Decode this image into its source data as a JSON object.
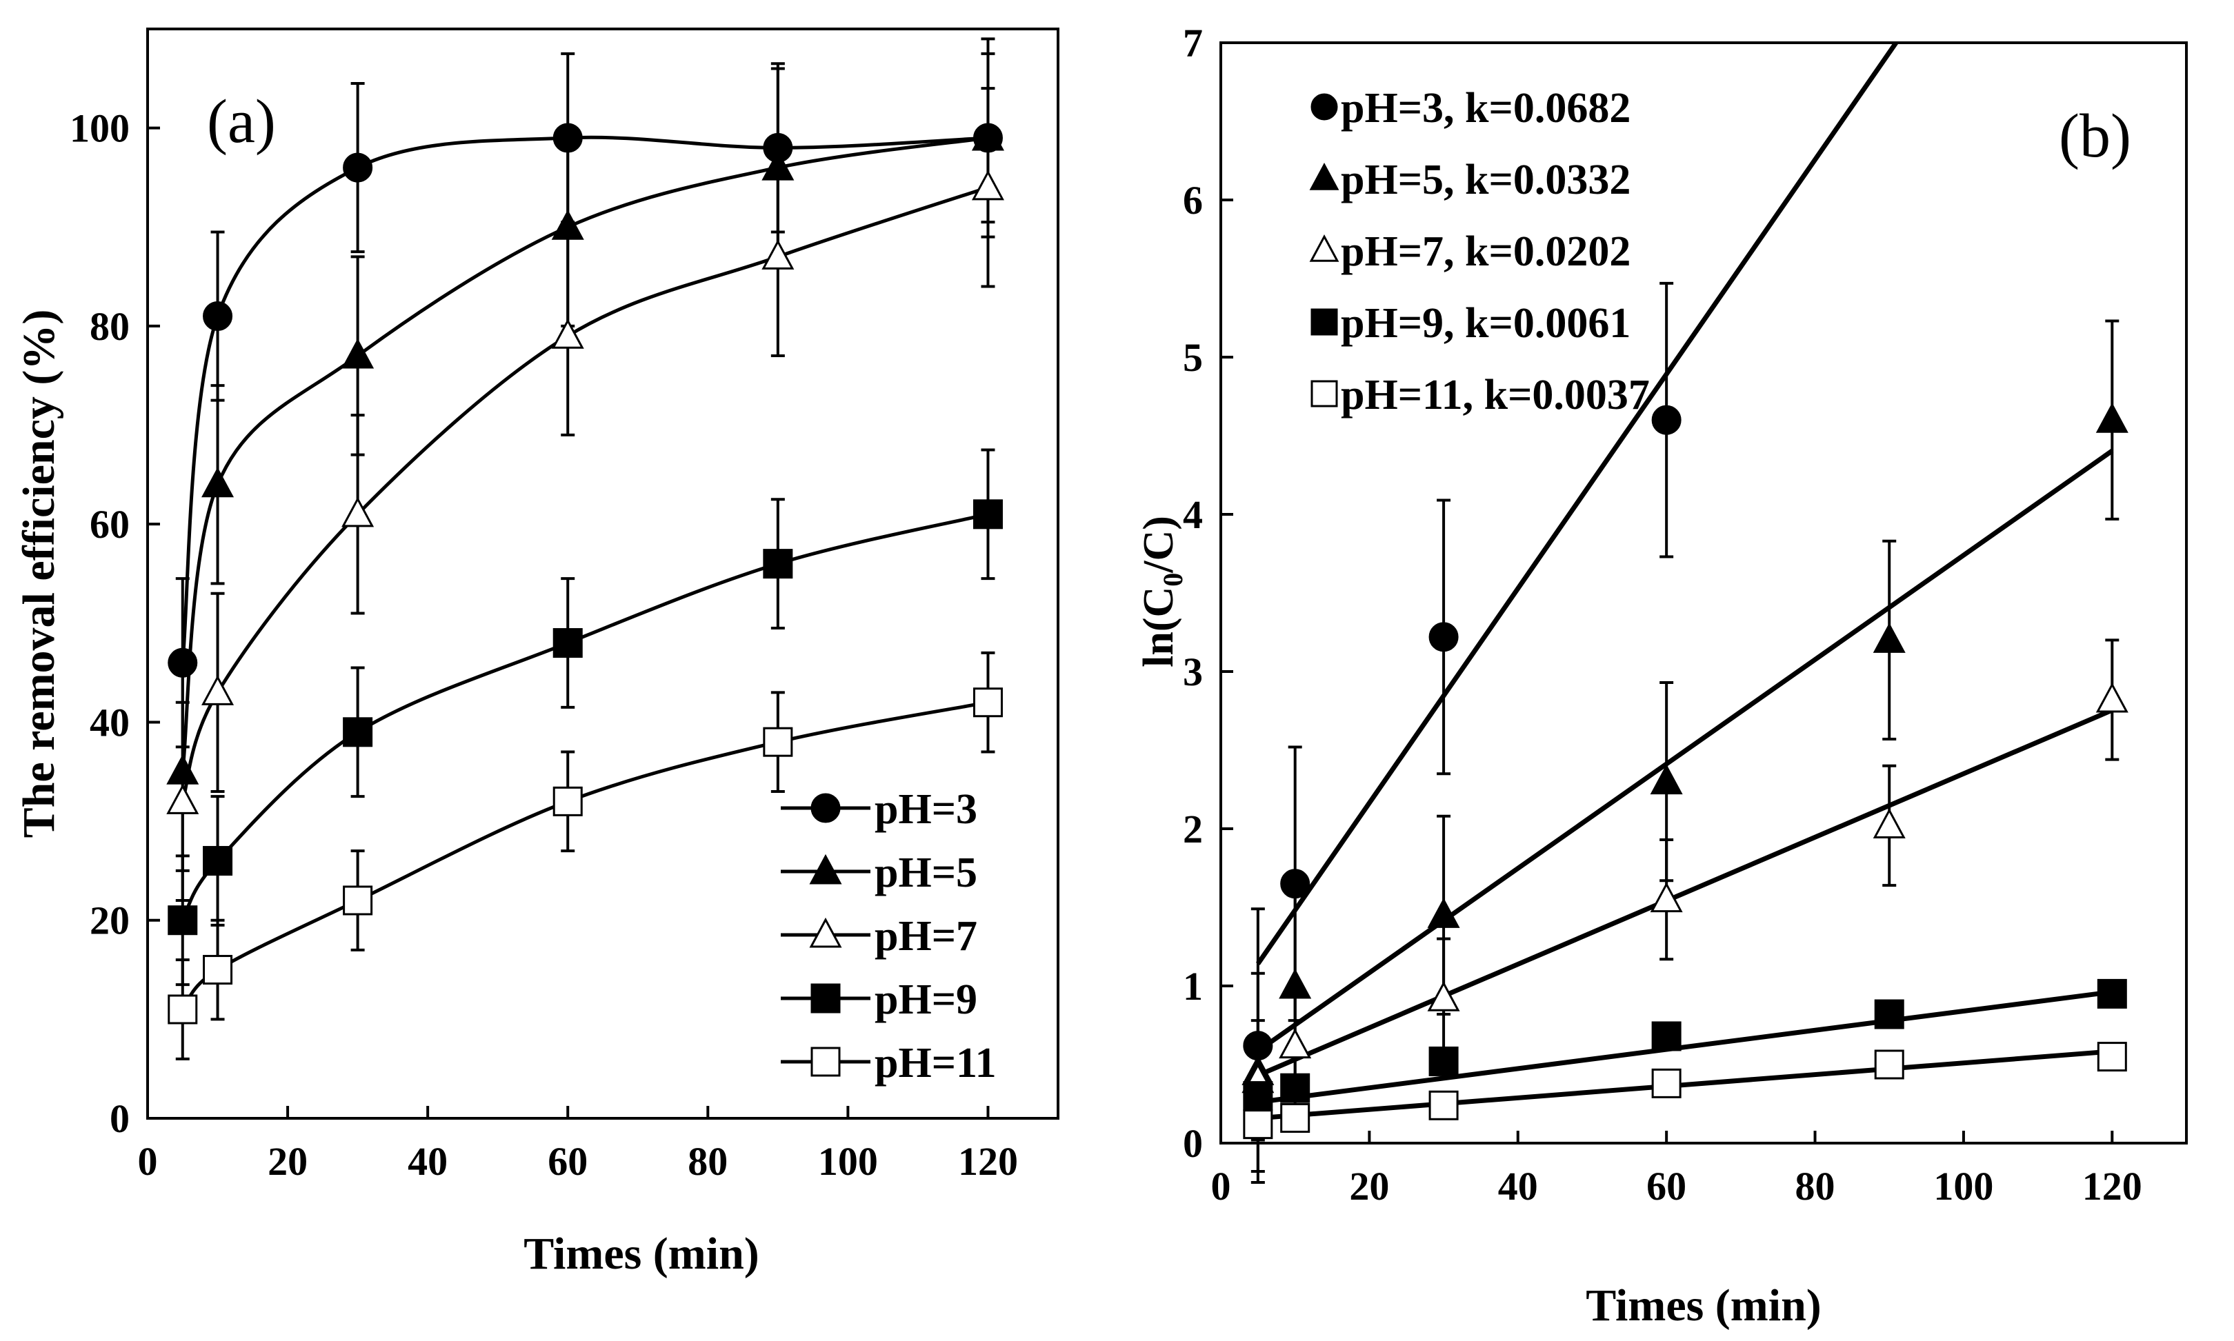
{
  "figure": {
    "background": "#ffffff",
    "ink": "#000000"
  },
  "chart_data": [
    {
      "type": "line",
      "panel": "(a)",
      "title": "",
      "xlabel": "Times (min)",
      "ylabel": "The removal efficiency (%)",
      "xlim": [
        0,
        130
      ],
      "ylim": [
        0,
        110
      ],
      "xticks": [
        0,
        20,
        40,
        60,
        80,
        100,
        120
      ],
      "yticks": [
        0,
        20,
        40,
        60,
        80,
        100
      ],
      "grid": false,
      "legend_position": "bottom-right",
      "x": [
        5,
        10,
        30,
        60,
        90,
        120
      ],
      "series": [
        {
          "name": "pH=3",
          "marker": "filled-circle",
          "values": [
            46,
            81,
            96,
            99,
            98,
            99
          ],
          "errors": [
            8.5,
            8.5,
            8.5,
            8.5,
            8.5,
            8.5
          ]
        },
        {
          "name": "pH=5",
          "marker": "filled-triangle",
          "values": [
            35,
            64,
            77,
            90,
            96,
            99
          ],
          "errors": [
            10,
            10,
            10,
            10,
            10,
            10
          ]
        },
        {
          "name": "pH=7",
          "marker": "open-triangle",
          "values": [
            32,
            43,
            61,
            79,
            87,
            94
          ],
          "errors": [
            10,
            10,
            10,
            10,
            10,
            10
          ]
        },
        {
          "name": "pH=9",
          "marker": "filled-square",
          "values": [
            20,
            26,
            39,
            48,
            56,
            61
          ],
          "errors": [
            6.5,
            6.5,
            6.5,
            6.5,
            6.5,
            6.5
          ]
        },
        {
          "name": "pH=11",
          "marker": "open-square",
          "values": [
            11,
            15,
            22,
            32,
            38,
            42
          ],
          "errors": [
            5,
            5,
            5,
            5,
            5,
            5
          ]
        }
      ]
    },
    {
      "type": "scatter",
      "panel": "(b)",
      "title": "",
      "xlabel": "Times (min)",
      "ylabel": "ln(C0/C)",
      "xlim": [
        0,
        130
      ],
      "ylim": [
        0,
        7
      ],
      "xticks": [
        0,
        20,
        40,
        60,
        80,
        100,
        120
      ],
      "yticks": [
        0,
        1,
        2,
        3,
        4,
        5,
        6,
        7
      ],
      "grid": false,
      "legend_position": "top-left",
      "x": [
        5,
        10,
        30,
        60,
        90,
        120
      ],
      "series": [
        {
          "name": "pH=3, k=0.0682",
          "marker": "filled-circle",
          "values": [
            0.62,
            1.65,
            3.22,
            4.6
          ],
          "errors": [
            0.87,
            0.87,
            0.87,
            0.87
          ],
          "fit": {
            "slope": 0.0682,
            "intercept": 0.8
          }
        },
        {
          "name": "pH=5, k=0.0332",
          "marker": "filled-triangle",
          "values": [
            0.45,
            1.0,
            1.45,
            2.3,
            3.2,
            4.6
          ],
          "errors": [
            0.63,
            0.63,
            0.63,
            0.63,
            0.63,
            0.63
          ],
          "fit": {
            "slope": 0.0332,
            "intercept": 0.42
          }
        },
        {
          "name": "pH=7, k=0.0202",
          "marker": "open-triangle",
          "values": [
            0.4,
            0.62,
            0.92,
            1.55,
            2.02,
            2.82
          ],
          "errors": [
            0.38,
            0.38,
            0.38,
            0.38,
            0.38,
            0.38
          ],
          "fit": {
            "slope": 0.0202,
            "intercept": 0.33
          }
        },
        {
          "name": "pH=9, k=0.0061",
          "marker": "filled-square",
          "values": [
            0.3,
            0.35,
            0.52,
            0.68,
            0.82,
            0.95
          ],
          "errors": [
            0,
            0,
            0,
            0,
            0,
            0
          ],
          "fit": {
            "slope": 0.0061,
            "intercept": 0.23
          }
        },
        {
          "name": "pH=11, k=0.0037",
          "marker": "open-square",
          "values": [
            0.12,
            0.16,
            0.24,
            0.38,
            0.5,
            0.55
          ],
          "errors": [
            0,
            0,
            0,
            0,
            0,
            0
          ],
          "fit": {
            "slope": 0.0037,
            "intercept": 0.14
          }
        }
      ]
    }
  ]
}
